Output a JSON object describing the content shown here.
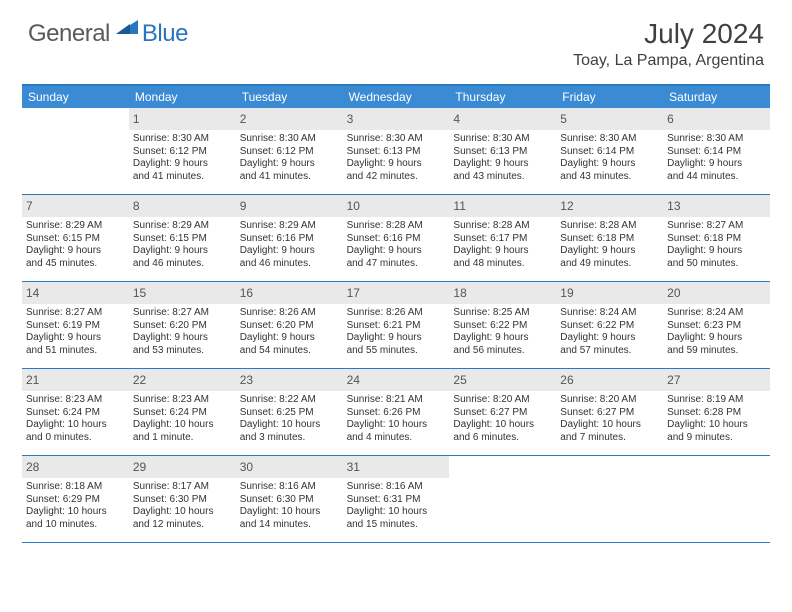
{
  "logo": {
    "general": "General",
    "blue": "Blue"
  },
  "title": "July 2024",
  "location": "Toay, La Pampa, Argentina",
  "colors": {
    "header_bg": "#3b8bd4",
    "border": "#2a7ac0",
    "daynum_bg": "#e9e9e9",
    "text": "#333333",
    "title_text": "#404040",
    "logo_gray": "#5a5a5a",
    "logo_blue": "#2676c0"
  },
  "day_names": [
    "Sunday",
    "Monday",
    "Tuesday",
    "Wednesday",
    "Thursday",
    "Friday",
    "Saturday"
  ],
  "weeks": [
    [
      {
        "n": "",
        "sr": "",
        "ss": "",
        "dl1": "",
        "dl2": ""
      },
      {
        "n": "1",
        "sr": "Sunrise: 8:30 AM",
        "ss": "Sunset: 6:12 PM",
        "dl1": "Daylight: 9 hours",
        "dl2": "and 41 minutes."
      },
      {
        "n": "2",
        "sr": "Sunrise: 8:30 AM",
        "ss": "Sunset: 6:12 PM",
        "dl1": "Daylight: 9 hours",
        "dl2": "and 41 minutes."
      },
      {
        "n": "3",
        "sr": "Sunrise: 8:30 AM",
        "ss": "Sunset: 6:13 PM",
        "dl1": "Daylight: 9 hours",
        "dl2": "and 42 minutes."
      },
      {
        "n": "4",
        "sr": "Sunrise: 8:30 AM",
        "ss": "Sunset: 6:13 PM",
        "dl1": "Daylight: 9 hours",
        "dl2": "and 43 minutes."
      },
      {
        "n": "5",
        "sr": "Sunrise: 8:30 AM",
        "ss": "Sunset: 6:14 PM",
        "dl1": "Daylight: 9 hours",
        "dl2": "and 43 minutes."
      },
      {
        "n": "6",
        "sr": "Sunrise: 8:30 AM",
        "ss": "Sunset: 6:14 PM",
        "dl1": "Daylight: 9 hours",
        "dl2": "and 44 minutes."
      }
    ],
    [
      {
        "n": "7",
        "sr": "Sunrise: 8:29 AM",
        "ss": "Sunset: 6:15 PM",
        "dl1": "Daylight: 9 hours",
        "dl2": "and 45 minutes."
      },
      {
        "n": "8",
        "sr": "Sunrise: 8:29 AM",
        "ss": "Sunset: 6:15 PM",
        "dl1": "Daylight: 9 hours",
        "dl2": "and 46 minutes."
      },
      {
        "n": "9",
        "sr": "Sunrise: 8:29 AM",
        "ss": "Sunset: 6:16 PM",
        "dl1": "Daylight: 9 hours",
        "dl2": "and 46 minutes."
      },
      {
        "n": "10",
        "sr": "Sunrise: 8:28 AM",
        "ss": "Sunset: 6:16 PM",
        "dl1": "Daylight: 9 hours",
        "dl2": "and 47 minutes."
      },
      {
        "n": "11",
        "sr": "Sunrise: 8:28 AM",
        "ss": "Sunset: 6:17 PM",
        "dl1": "Daylight: 9 hours",
        "dl2": "and 48 minutes."
      },
      {
        "n": "12",
        "sr": "Sunrise: 8:28 AM",
        "ss": "Sunset: 6:18 PM",
        "dl1": "Daylight: 9 hours",
        "dl2": "and 49 minutes."
      },
      {
        "n": "13",
        "sr": "Sunrise: 8:27 AM",
        "ss": "Sunset: 6:18 PM",
        "dl1": "Daylight: 9 hours",
        "dl2": "and 50 minutes."
      }
    ],
    [
      {
        "n": "14",
        "sr": "Sunrise: 8:27 AM",
        "ss": "Sunset: 6:19 PM",
        "dl1": "Daylight: 9 hours",
        "dl2": "and 51 minutes."
      },
      {
        "n": "15",
        "sr": "Sunrise: 8:27 AM",
        "ss": "Sunset: 6:20 PM",
        "dl1": "Daylight: 9 hours",
        "dl2": "and 53 minutes."
      },
      {
        "n": "16",
        "sr": "Sunrise: 8:26 AM",
        "ss": "Sunset: 6:20 PM",
        "dl1": "Daylight: 9 hours",
        "dl2": "and 54 minutes."
      },
      {
        "n": "17",
        "sr": "Sunrise: 8:26 AM",
        "ss": "Sunset: 6:21 PM",
        "dl1": "Daylight: 9 hours",
        "dl2": "and 55 minutes."
      },
      {
        "n": "18",
        "sr": "Sunrise: 8:25 AM",
        "ss": "Sunset: 6:22 PM",
        "dl1": "Daylight: 9 hours",
        "dl2": "and 56 minutes."
      },
      {
        "n": "19",
        "sr": "Sunrise: 8:24 AM",
        "ss": "Sunset: 6:22 PM",
        "dl1": "Daylight: 9 hours",
        "dl2": "and 57 minutes."
      },
      {
        "n": "20",
        "sr": "Sunrise: 8:24 AM",
        "ss": "Sunset: 6:23 PM",
        "dl1": "Daylight: 9 hours",
        "dl2": "and 59 minutes."
      }
    ],
    [
      {
        "n": "21",
        "sr": "Sunrise: 8:23 AM",
        "ss": "Sunset: 6:24 PM",
        "dl1": "Daylight: 10 hours",
        "dl2": "and 0 minutes."
      },
      {
        "n": "22",
        "sr": "Sunrise: 8:23 AM",
        "ss": "Sunset: 6:24 PM",
        "dl1": "Daylight: 10 hours",
        "dl2": "and 1 minute."
      },
      {
        "n": "23",
        "sr": "Sunrise: 8:22 AM",
        "ss": "Sunset: 6:25 PM",
        "dl1": "Daylight: 10 hours",
        "dl2": "and 3 minutes."
      },
      {
        "n": "24",
        "sr": "Sunrise: 8:21 AM",
        "ss": "Sunset: 6:26 PM",
        "dl1": "Daylight: 10 hours",
        "dl2": "and 4 minutes."
      },
      {
        "n": "25",
        "sr": "Sunrise: 8:20 AM",
        "ss": "Sunset: 6:27 PM",
        "dl1": "Daylight: 10 hours",
        "dl2": "and 6 minutes."
      },
      {
        "n": "26",
        "sr": "Sunrise: 8:20 AM",
        "ss": "Sunset: 6:27 PM",
        "dl1": "Daylight: 10 hours",
        "dl2": "and 7 minutes."
      },
      {
        "n": "27",
        "sr": "Sunrise: 8:19 AM",
        "ss": "Sunset: 6:28 PM",
        "dl1": "Daylight: 10 hours",
        "dl2": "and 9 minutes."
      }
    ],
    [
      {
        "n": "28",
        "sr": "Sunrise: 8:18 AM",
        "ss": "Sunset: 6:29 PM",
        "dl1": "Daylight: 10 hours",
        "dl2": "and 10 minutes."
      },
      {
        "n": "29",
        "sr": "Sunrise: 8:17 AM",
        "ss": "Sunset: 6:30 PM",
        "dl1": "Daylight: 10 hours",
        "dl2": "and 12 minutes."
      },
      {
        "n": "30",
        "sr": "Sunrise: 8:16 AM",
        "ss": "Sunset: 6:30 PM",
        "dl1": "Daylight: 10 hours",
        "dl2": "and 14 minutes."
      },
      {
        "n": "31",
        "sr": "Sunrise: 8:16 AM",
        "ss": "Sunset: 6:31 PM",
        "dl1": "Daylight: 10 hours",
        "dl2": "and 15 minutes."
      },
      {
        "n": "",
        "sr": "",
        "ss": "",
        "dl1": "",
        "dl2": ""
      },
      {
        "n": "",
        "sr": "",
        "ss": "",
        "dl1": "",
        "dl2": ""
      },
      {
        "n": "",
        "sr": "",
        "ss": "",
        "dl1": "",
        "dl2": ""
      }
    ]
  ]
}
